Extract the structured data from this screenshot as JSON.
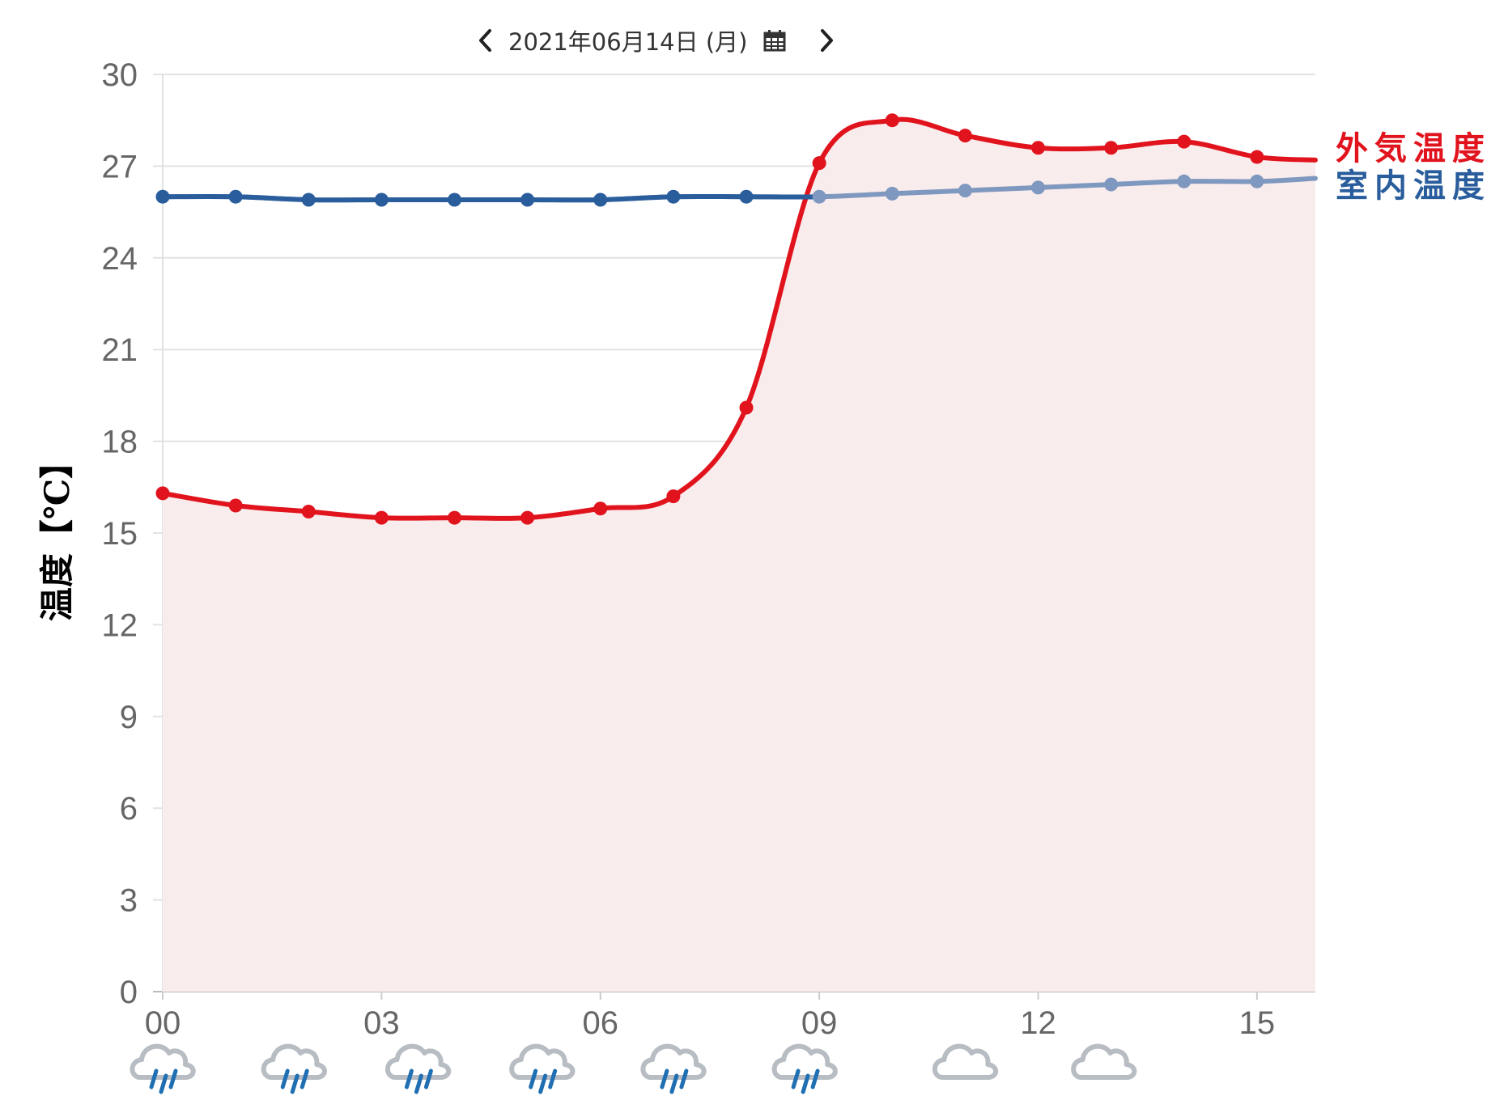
{
  "navigation": {
    "date_label": "2021年06月14日 (月)",
    "prev_icon": "chevron-left-icon",
    "next_icon": "chevron-right-icon",
    "calendar_icon": "calendar-icon"
  },
  "colors": {
    "outdoor": "#e1141e",
    "outdoor_fill": "#f9eced",
    "indoor": "#2a5d9c",
    "indoor_light": "#7f98bf",
    "grid": "#e2e2e2",
    "axis": "#cccccc",
    "rain_cloud": "#b8bcc3",
    "rain_drops": "#1f6fb2"
  },
  "chart_data": {
    "type": "line",
    "ylabel": "温度【℃】",
    "xlabel": "",
    "ylim": [
      0,
      30
    ],
    "yticks": [
      0,
      3,
      6,
      9,
      12,
      15,
      18,
      21,
      24,
      27,
      30
    ],
    "xlim": [
      0,
      15.8
    ],
    "xticks": [
      "00",
      "03",
      "06",
      "09",
      "12",
      "15"
    ],
    "x": [
      0,
      1,
      2,
      3,
      4,
      5,
      6,
      7,
      8,
      9,
      10,
      11,
      12,
      13,
      14,
      15
    ],
    "grid": true,
    "legend": "right",
    "series": [
      {
        "name": "外気温度",
        "values": [
          16.3,
          15.9,
          15.7,
          15.5,
          15.5,
          15.5,
          15.8,
          16.2,
          19.1,
          27.1,
          28.5,
          28.0,
          27.6,
          27.6,
          27.8,
          27.3
        ],
        "end_value": 27.2,
        "filled": true
      },
      {
        "name": "室内温度",
        "values": [
          26.0,
          26.0,
          25.9,
          25.9,
          25.9,
          25.9,
          25.9,
          26.0,
          26.0,
          26.0,
          26.1,
          26.2,
          26.3,
          26.4,
          26.5,
          26.5
        ],
        "end_value": 26.6,
        "filled": false
      }
    ]
  },
  "weather": [
    {
      "hour": 0,
      "icon": "rain-icon"
    },
    {
      "hour": 1.8,
      "icon": "rain-icon"
    },
    {
      "hour": 3.5,
      "icon": "rain-icon"
    },
    {
      "hour": 5.2,
      "icon": "rain-icon"
    },
    {
      "hour": 7.0,
      "icon": "rain-icon"
    },
    {
      "hour": 8.8,
      "icon": "rain-icon"
    },
    {
      "hour": 11.0,
      "icon": "cloud-icon"
    },
    {
      "hour": 12.9,
      "icon": "cloud-icon"
    }
  ]
}
